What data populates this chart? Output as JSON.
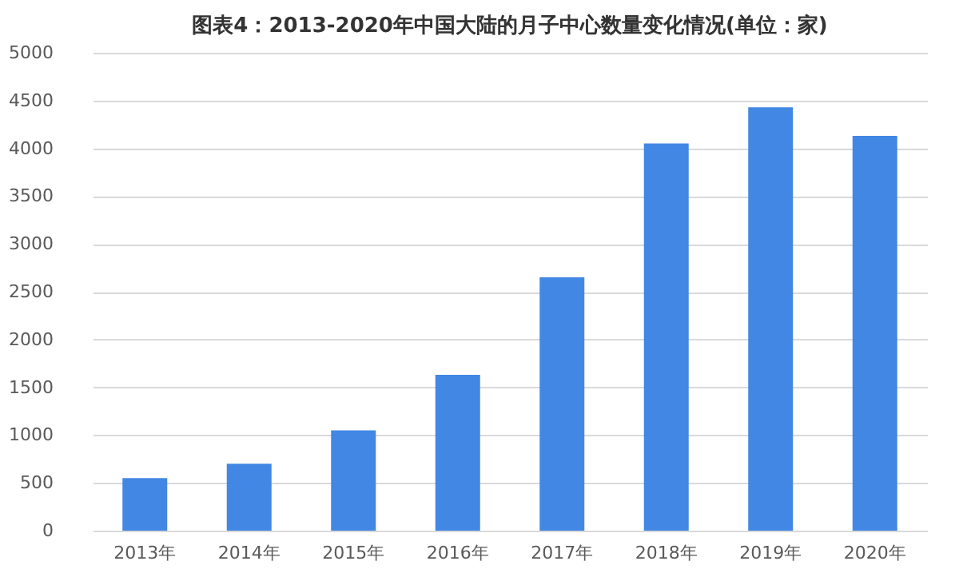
{
  "chart_data": {
    "type": "bar",
    "title": "图表4：2013-2020年中国大陆的月子中心数量变化情况(单位：家)",
    "categories": [
      "2013年",
      "2014年",
      "2015年",
      "2016年",
      "2017年",
      "2018年",
      "2019年",
      "2020年"
    ],
    "values": [
      550,
      700,
      1050,
      1630,
      2650,
      4050,
      4430,
      4130
    ],
    "color": "#4287e3",
    "ylim": [
      0,
      5000
    ],
    "yticks": [
      0,
      500,
      1000,
      1500,
      2000,
      2500,
      3000,
      3500,
      4000,
      4500,
      5000
    ],
    "grid": "y"
  }
}
